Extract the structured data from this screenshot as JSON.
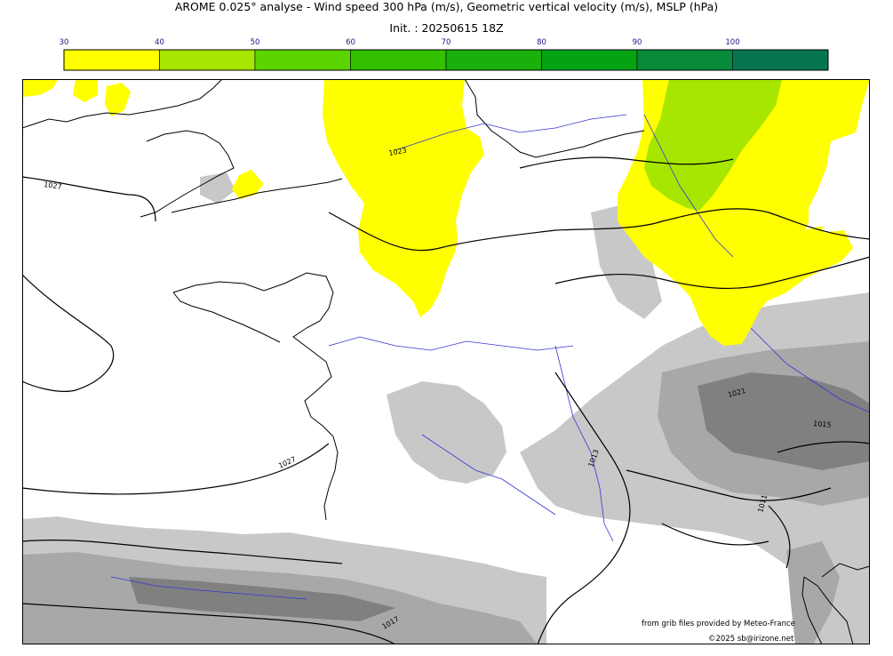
{
  "header": {
    "title": "AROME 0.025° analyse - Wind speed 300 hPa (m/s), Geometric vertical velocity (m/s), MSLP (hPa)",
    "init": "Init. : 20250615 18Z"
  },
  "colorbar": {
    "ticks": [
      "30",
      "40",
      "50",
      "60",
      "70",
      "80",
      "90",
      "100"
    ],
    "colors": [
      "#ffff00",
      "#a6e600",
      "#5cd400",
      "#33c000",
      "#1aaf0a",
      "#05a314",
      "#078a3a",
      "#067550"
    ]
  },
  "map": {
    "isobar_labels": [
      "1027",
      "1027",
      "1023",
      "1021",
      "1015",
      "1013",
      "1011",
      "1017"
    ]
  },
  "footer": {
    "source": "from grib files provided by Meteo-France",
    "copyright": "©2025 sb@irizone.net"
  }
}
